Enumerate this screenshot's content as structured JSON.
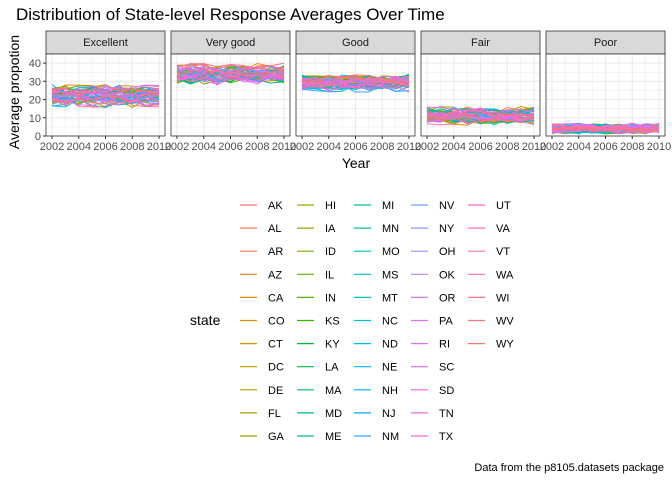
{
  "chart_data": {
    "type": "line",
    "title": "Distribution of State-level Response Averages Over Time",
    "xlabel": "Year",
    "ylabel": "Average propotion",
    "caption": "Data from the p8105.datasets package",
    "x": [
      2002,
      2003,
      2004,
      2005,
      2006,
      2007,
      2008,
      2009,
      2010
    ],
    "xticks": [
      "2002",
      "2004",
      "2006",
      "2008",
      "2010"
    ],
    "xlim": [
      2002,
      2010
    ],
    "yticks": [
      "0",
      "10",
      "20",
      "30",
      "40"
    ],
    "ylim": [
      0,
      45
    ],
    "grid": true,
    "legend_placement": "bottom",
    "facets": [
      {
        "label": "Excellent",
        "center": 22,
        "range": [
          12,
          29
        ]
      },
      {
        "label": "Very good",
        "center": 34,
        "range": [
          26,
          43
        ]
      },
      {
        "label": "Good",
        "center": 29,
        "range": [
          23,
          36
        ]
      },
      {
        "label": "Fair",
        "center": 11,
        "range": [
          4,
          18
        ]
      },
      {
        "label": "Poor",
        "center": 4,
        "range": [
          1,
          9
        ]
      }
    ],
    "legend": {
      "title": "state",
      "entries": [
        "AK",
        "AL",
        "AR",
        "AZ",
        "CA",
        "CO",
        "CT",
        "DC",
        "DE",
        "FL",
        "GA",
        "HI",
        "IA",
        "ID",
        "IL",
        "IN",
        "KS",
        "KY",
        "LA",
        "MA",
        "MD",
        "ME",
        "MI",
        "MN",
        "MO",
        "MS",
        "MT",
        "NC",
        "ND",
        "NE",
        "NH",
        "NJ",
        "NM",
        "NV",
        "NY",
        "OH",
        "OK",
        "OR",
        "PA",
        "RI",
        "SC",
        "SD",
        "TN",
        "TX",
        "UT",
        "VA",
        "VT",
        "WA",
        "WI",
        "WV",
        "WY"
      ],
      "colors": [
        "#F8766D",
        "#F47B59",
        "#EE8044",
        "#E7851E",
        "#DF8A00",
        "#D69000",
        "#CD9500",
        "#C49A00",
        "#BA9E00",
        "#AFA200",
        "#A3A500",
        "#96A900",
        "#88AC00",
        "#79AF00",
        "#67B200",
        "#51B400",
        "#31B700",
        "#00B92F",
        "#00BB4C",
        "#00BC61",
        "#00BE73",
        "#00BF84",
        "#00C094",
        "#00C0A3",
        "#00C1B2",
        "#00C0C0",
        "#00BFCD",
        "#00BDDA",
        "#00BAE6",
        "#00B6F0",
        "#00B1FA",
        "#00ABFD",
        "#3CA4FF",
        "#6F9CFF",
        "#8F94FF",
        "#A78BFF",
        "#BA82FF",
        "#CA7AFF",
        "#D773FF",
        "#E16CFB",
        "#EA66F3",
        "#F163EA",
        "#F663DF",
        "#F965D4",
        "#FB68C7",
        "#FC6CB9",
        "#FC70AB",
        "#FB739C",
        "#F9758C",
        "#F9767D",
        "#F8766D"
      ]
    }
  }
}
